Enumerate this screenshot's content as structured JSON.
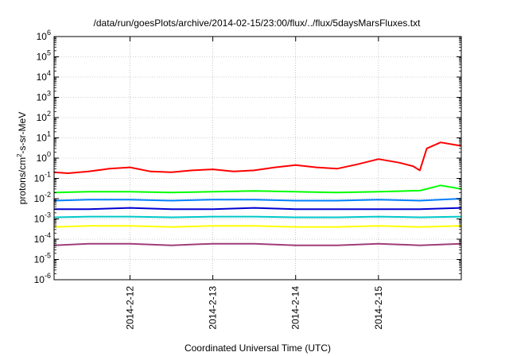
{
  "chart_data": {
    "type": "line",
    "title": "/data/run/goesPlots/archive/2014-02-15/23:00/flux/../flux/5daysMarsFluxes.txt",
    "xlabel": "Coordinated Universal Time (UTC)",
    "ylabel": "protons/cm2-s-sr-MeV",
    "ylabel_parts": [
      "protons/cm",
      "2",
      "-s-sr-MeV"
    ],
    "yscale": "log",
    "ylim": [
      1e-06,
      1000000.0
    ],
    "xlim": [
      "2014-02-11 02:00",
      "2014-02-16 00:00"
    ],
    "grid": true,
    "legend": "none",
    "x_ticks": [
      "2014-2-12",
      "2014-2-13",
      "2014-2-14",
      "2014-2-15"
    ],
    "x_tick_dates": [
      "2014-02-12",
      "2014-02-13",
      "2014-02-14",
      "2014-02-15"
    ],
    "y_ticks": [
      {
        "base": "10",
        "exp": "-6"
      },
      {
        "base": "10",
        "exp": "-5"
      },
      {
        "base": "10",
        "exp": "-4"
      },
      {
        "base": "10",
        "exp": "-3"
      },
      {
        "base": "10",
        "exp": "-2"
      },
      {
        "base": "10",
        "exp": "-1"
      },
      {
        "base": "10",
        "exp": "0"
      },
      {
        "base": "10",
        "exp": "1"
      },
      {
        "base": "10",
        "exp": "2"
      },
      {
        "base": "10",
        "exp": "3"
      },
      {
        "base": "10",
        "exp": "4"
      },
      {
        "base": "10",
        "exp": "5"
      },
      {
        "base": "10",
        "exp": "6"
      }
    ],
    "series": [
      {
        "color": "#ff0000",
        "x": [
          "2014-02-11 02:00",
          "2014-02-11 06:00",
          "2014-02-11 12:00",
          "2014-02-11 18:00",
          "2014-02-12 00:00",
          "2014-02-12 06:00",
          "2014-02-12 12:00",
          "2014-02-12 18:00",
          "2014-02-13 00:00",
          "2014-02-13 06:00",
          "2014-02-13 12:00",
          "2014-02-13 18:00",
          "2014-02-14 00:00",
          "2014-02-14 06:00",
          "2014-02-14 12:00",
          "2014-02-14 18:00",
          "2014-02-15 00:00",
          "2014-02-15 06:00",
          "2014-02-15 10:00",
          "2014-02-15 12:00",
          "2014-02-15 14:00",
          "2014-02-15 18:00",
          "2014-02-16 00:00"
        ],
        "y": [
          0.2,
          0.18,
          0.22,
          0.3,
          0.35,
          0.22,
          0.2,
          0.25,
          0.28,
          0.22,
          0.25,
          0.35,
          0.45,
          0.35,
          0.3,
          0.5,
          0.9,
          0.6,
          0.4,
          0.25,
          3,
          6,
          4
        ]
      },
      {
        "color": "#00ff00",
        "x": [
          "2014-02-11 02:00",
          "2014-02-11 12:00",
          "2014-02-12 00:00",
          "2014-02-12 12:00",
          "2014-02-13 00:00",
          "2014-02-13 12:00",
          "2014-02-14 00:00",
          "2014-02-14 12:00",
          "2014-02-15 00:00",
          "2014-02-15 12:00",
          "2014-02-15 18:00",
          "2014-02-16 00:00"
        ],
        "y": [
          0.02,
          0.022,
          0.022,
          0.02,
          0.022,
          0.024,
          0.022,
          0.02,
          0.022,
          0.025,
          0.045,
          0.03
        ]
      },
      {
        "color": "#0080ff",
        "x": [
          "2014-02-11 02:00",
          "2014-02-11 12:00",
          "2014-02-12 00:00",
          "2014-02-12 12:00",
          "2014-02-13 00:00",
          "2014-02-13 12:00",
          "2014-02-14 00:00",
          "2014-02-14 12:00",
          "2014-02-15 00:00",
          "2014-02-15 12:00",
          "2014-02-16 00:00"
        ],
        "y": [
          0.008,
          0.009,
          0.009,
          0.008,
          0.009,
          0.009,
          0.008,
          0.008,
          0.009,
          0.008,
          0.01
        ]
      },
      {
        "color": "#0000d0",
        "x": [
          "2014-02-11 02:00",
          "2014-02-11 12:00",
          "2014-02-12 00:00",
          "2014-02-12 12:00",
          "2014-02-13 00:00",
          "2014-02-13 12:00",
          "2014-02-14 00:00",
          "2014-02-14 12:00",
          "2014-02-15 00:00",
          "2014-02-15 12:00",
          "2014-02-16 00:00"
        ],
        "y": [
          0.003,
          0.003,
          0.0035,
          0.003,
          0.003,
          0.0035,
          0.003,
          0.003,
          0.003,
          0.003,
          0.0035
        ]
      },
      {
        "color": "#00c8c8",
        "x": [
          "2014-02-11 02:00",
          "2014-02-11 12:00",
          "2014-02-12 00:00",
          "2014-02-12 12:00",
          "2014-02-13 00:00",
          "2014-02-13 12:00",
          "2014-02-14 00:00",
          "2014-02-14 12:00",
          "2014-02-15 00:00",
          "2014-02-15 12:00",
          "2014-02-16 00:00"
        ],
        "y": [
          0.0012,
          0.0013,
          0.0013,
          0.0012,
          0.0013,
          0.0013,
          0.0012,
          0.0012,
          0.0013,
          0.0012,
          0.0013
        ]
      },
      {
        "color": "#ffff00",
        "x": [
          "2014-02-11 02:00",
          "2014-02-11 12:00",
          "2014-02-12 00:00",
          "2014-02-12 12:00",
          "2014-02-13 00:00",
          "2014-02-13 12:00",
          "2014-02-14 00:00",
          "2014-02-14 12:00",
          "2014-02-15 00:00",
          "2014-02-15 12:00",
          "2014-02-16 00:00"
        ],
        "y": [
          0.0004,
          0.00045,
          0.00045,
          0.0004,
          0.00045,
          0.00045,
          0.0004,
          0.0004,
          0.00045,
          0.0004,
          0.00045
        ]
      },
      {
        "color": "#a03c78",
        "x": [
          "2014-02-11 02:00",
          "2014-02-11 12:00",
          "2014-02-12 00:00",
          "2014-02-12 12:00",
          "2014-02-13 00:00",
          "2014-02-13 12:00",
          "2014-02-14 00:00",
          "2014-02-14 12:00",
          "2014-02-15 00:00",
          "2014-02-15 12:00",
          "2014-02-16 00:00"
        ],
        "y": [
          5e-05,
          6e-05,
          6e-05,
          5e-05,
          6e-05,
          6e-05,
          5e-05,
          5e-05,
          6e-05,
          5e-05,
          6e-05
        ]
      }
    ]
  }
}
